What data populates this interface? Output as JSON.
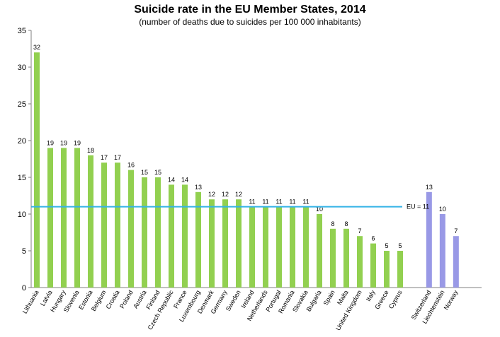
{
  "chart_data": {
    "type": "bar",
    "title": "Suicide rate in the EU Member States, 2014",
    "subtitle": "(number of deaths due to suicides per 100 000 inhabitants)",
    "xlabel": "",
    "ylabel": "",
    "ylim": [
      0,
      35
    ],
    "yticks": [
      "0",
      "5",
      "10",
      "15",
      "20",
      "25",
      "30",
      "35"
    ],
    "grid": false,
    "categories": [
      "Lithuania",
      "Latvia",
      "Hungary",
      "Slovenia",
      "Estonia",
      "Belgium",
      "Croatia",
      "Poland",
      "Austria",
      "Finland",
      "Czech Republic",
      "France",
      "Luxembourg",
      "Denmark",
      "Germany",
      "Sweden",
      "Ireland",
      "Netherlands",
      "Portugal",
      "Romania",
      "Slovakia",
      "Bulgaria",
      "Spain",
      "Malta",
      "United Kingdom",
      "Italy",
      "Greece",
      "Cyprus",
      "Switzerland",
      "Liechtenstein",
      "Norway"
    ],
    "values": [
      32,
      19,
      19,
      19,
      18,
      17,
      17,
      16,
      15,
      15,
      14,
      14,
      13,
      12,
      12,
      12,
      11,
      11,
      11,
      11,
      11,
      10,
      8,
      8,
      7,
      6,
      5,
      5,
      13,
      10,
      7
    ],
    "groups": [
      "EU",
      "EU",
      "EU",
      "EU",
      "EU",
      "EU",
      "EU",
      "EU",
      "EU",
      "EU",
      "EU",
      "EU",
      "EU",
      "EU",
      "EU",
      "EU",
      "EU",
      "EU",
      "EU",
      "EU",
      "EU",
      "EU",
      "EU",
      "EU",
      "EU",
      "EU",
      "EU",
      "EU",
      "non-EU",
      "non-EU",
      "non-EU"
    ],
    "colors": {
      "EU": "#92D050",
      "non-EU": "#9999E6",
      "reference": "#33B3E6",
      "axis": "#808080"
    },
    "reference_line": {
      "label": "EU = 11",
      "value": 11
    }
  }
}
